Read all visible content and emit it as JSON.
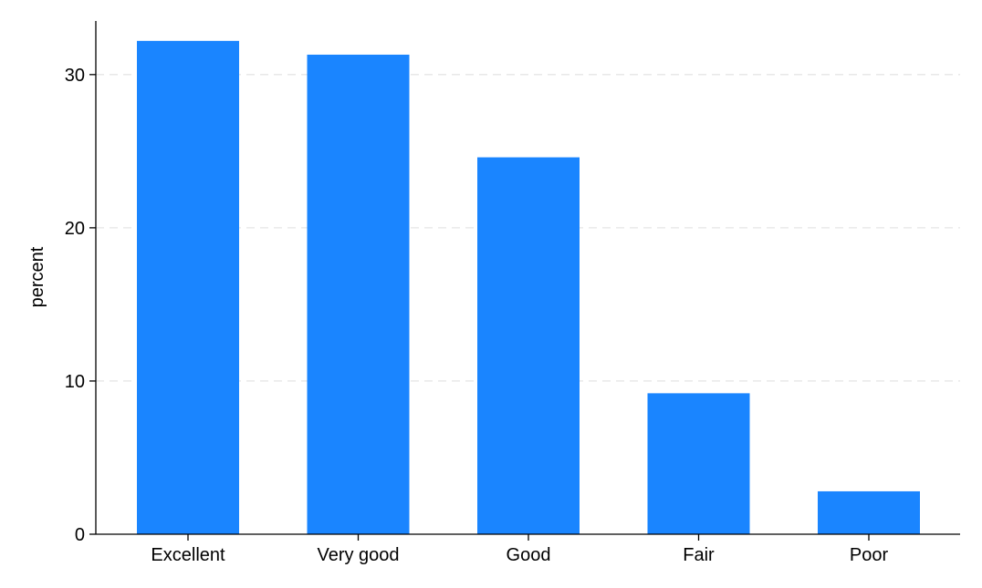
{
  "chart_data": {
    "type": "bar",
    "categories": [
      "Excellent",
      "Very good",
      "Good",
      "Fair",
      "Poor"
    ],
    "values": [
      32.2,
      31.3,
      24.6,
      9.2,
      2.8
    ],
    "title": "",
    "xlabel": "",
    "ylabel": "percent",
    "ylim": [
      0,
      33.5
    ],
    "yticks": [
      0,
      10,
      20,
      30
    ],
    "grid": "horizontal dashed",
    "bar_color": "#1a85ff",
    "grid_color": "#e6e6e6",
    "axis_color": "#000000"
  }
}
